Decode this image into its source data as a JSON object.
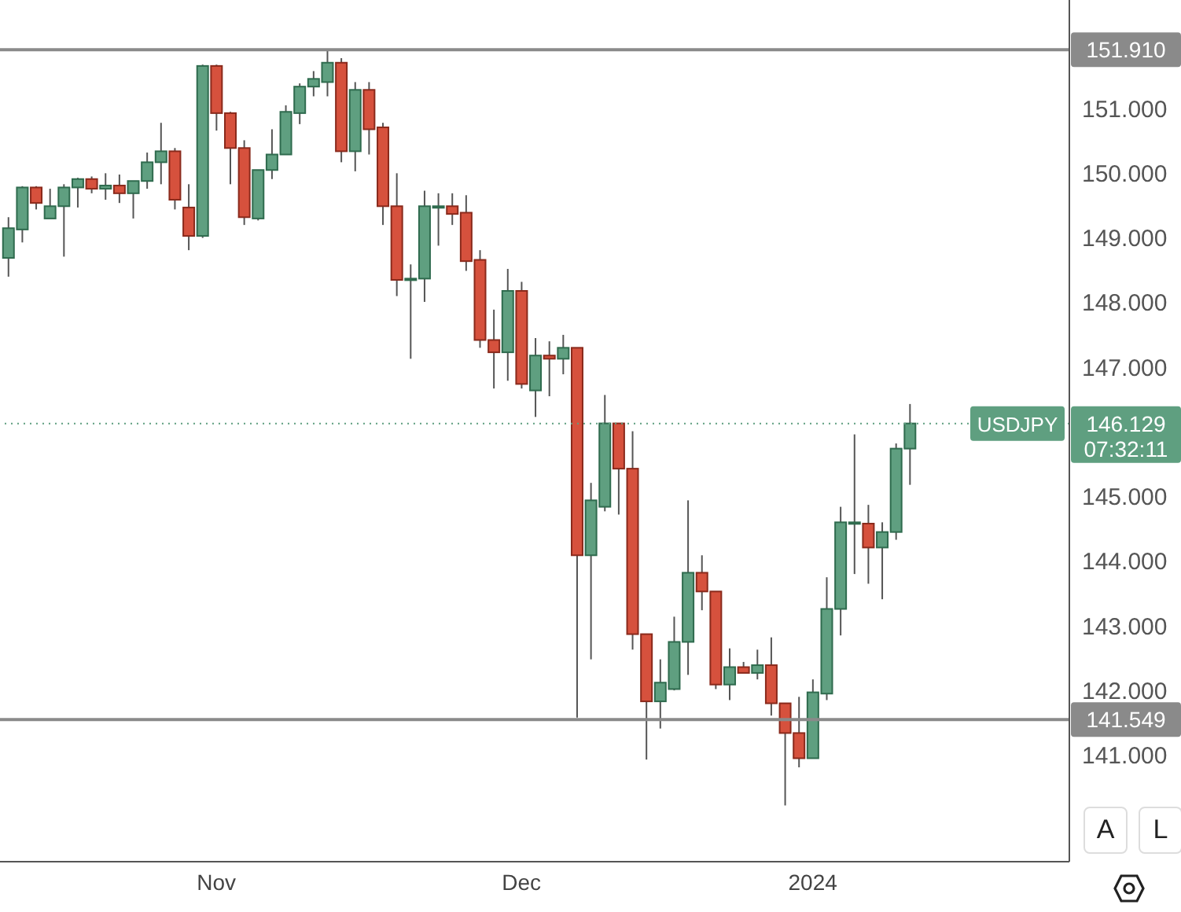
{
  "chart_data": {
    "type": "candlestick",
    "categories": [
      null,
      null,
      null,
      null,
      null,
      null,
      null,
      null,
      null,
      null,
      null,
      null,
      null,
      null,
      null,
      "Nov",
      null,
      null,
      null,
      null,
      null,
      null,
      null,
      null,
      null,
      null,
      null,
      null,
      null,
      null,
      null,
      null,
      null,
      null,
      null,
      null,
      null,
      "Dec",
      null,
      null,
      null,
      null,
      null,
      null,
      null,
      null,
      null,
      null,
      null,
      null,
      null,
      null,
      null,
      null,
      null,
      null,
      null,
      null,
      "2024",
      null,
      null,
      null,
      null,
      null,
      null,
      null,
      null,
      null,
      null,
      null,
      null,
      null,
      null,
      null,
      null,
      null,
      null
    ],
    "ohlc": [
      [
        148.69,
        149.32,
        148.4,
        149.15
      ],
      [
        149.13,
        149.8,
        148.93,
        149.78
      ],
      [
        149.78,
        149.8,
        149.44,
        149.54
      ],
      [
        149.3,
        149.76,
        149.3,
        149.49
      ],
      [
        149.49,
        149.83,
        148.71,
        149.78
      ],
      [
        149.78,
        149.93,
        149.47,
        149.91
      ],
      [
        149.91,
        149.95,
        149.69,
        149.76
      ],
      [
        149.76,
        150.0,
        149.59,
        149.81
      ],
      [
        149.81,
        149.98,
        149.54,
        149.69
      ],
      [
        149.69,
        149.88,
        149.3,
        149.88
      ],
      [
        149.88,
        150.32,
        149.76,
        150.17
      ],
      [
        150.17,
        150.78,
        149.83,
        150.34
      ],
      [
        150.34,
        150.39,
        149.44,
        149.59
      ],
      [
        149.47,
        149.83,
        148.81,
        149.03
      ],
      [
        149.03,
        151.68,
        149.0,
        151.66
      ],
      [
        151.66,
        151.68,
        150.66,
        150.93
      ],
      [
        150.93,
        150.95,
        149.83,
        150.39
      ],
      [
        150.39,
        150.51,
        149.2,
        149.32
      ],
      [
        149.3,
        150.05,
        149.27,
        150.05
      ],
      [
        150.05,
        150.68,
        149.91,
        150.29
      ],
      [
        150.29,
        151.05,
        150.29,
        150.95
      ],
      [
        150.93,
        151.39,
        150.76,
        151.34
      ],
      [
        151.34,
        151.58,
        151.19,
        151.46
      ],
      [
        151.41,
        151.91,
        151.19,
        151.71
      ],
      [
        151.71,
        151.78,
        150.17,
        150.34
      ],
      [
        150.34,
        151.41,
        150.03,
        151.29
      ],
      [
        151.29,
        151.41,
        150.29,
        150.68
      ],
      [
        150.71,
        150.78,
        149.2,
        149.49
      ],
      [
        149.49,
        150.0,
        148.1,
        148.35
      ],
      [
        148.37,
        148.59,
        147.13,
        148.37
      ],
      [
        148.37,
        149.73,
        148.01,
        149.49
      ],
      [
        149.49,
        149.69,
        148.88,
        149.49
      ],
      [
        149.49,
        149.69,
        149.2,
        149.37
      ],
      [
        149.39,
        149.66,
        148.49,
        148.64
      ],
      [
        148.66,
        148.81,
        147.3,
        147.42
      ],
      [
        147.42,
        147.89,
        146.67,
        147.23
      ],
      [
        147.23,
        148.52,
        146.79,
        148.18
      ],
      [
        148.18,
        148.32,
        146.67,
        146.74
      ],
      [
        146.64,
        147.45,
        146.23,
        147.18
      ],
      [
        147.18,
        147.4,
        146.55,
        147.13
      ],
      [
        147.13,
        147.5,
        146.89,
        147.3
      ],
      [
        147.3,
        147.3,
        141.58,
        144.09
      ],
      [
        144.09,
        145.21,
        142.48,
        144.94
      ],
      [
        144.84,
        146.57,
        144.77,
        146.13
      ],
      [
        146.13,
        146.13,
        144.72,
        145.43
      ],
      [
        145.43,
        146.01,
        142.63,
        142.87
      ],
      [
        142.87,
        142.87,
        140.93,
        141.83
      ],
      [
        141.83,
        142.48,
        141.41,
        142.12
      ],
      [
        142.02,
        143.14,
        142.0,
        142.75
      ],
      [
        142.75,
        144.94,
        142.24,
        143.82
      ],
      [
        143.82,
        144.09,
        143.24,
        143.53
      ],
      [
        143.53,
        143.53,
        142.02,
        142.09
      ],
      [
        142.09,
        142.65,
        141.85,
        142.36
      ],
      [
        142.36,
        142.44,
        142.27,
        142.27
      ],
      [
        142.27,
        142.63,
        142.17,
        142.39
      ],
      [
        142.39,
        142.82,
        141.61,
        141.8
      ],
      [
        141.8,
        141.8,
        140.22,
        141.34
      ],
      [
        141.34,
        141.9,
        140.81,
        140.95
      ],
      [
        140.95,
        142.17,
        140.95,
        141.97
      ],
      [
        141.95,
        143.75,
        141.85,
        143.26
      ],
      [
        143.26,
        144.84,
        142.85,
        144.6
      ],
      [
        144.6,
        145.96,
        143.8,
        144.6
      ],
      [
        144.58,
        144.87,
        143.65,
        144.21
      ],
      [
        144.21,
        144.6,
        143.41,
        144.45
      ],
      [
        144.45,
        145.82,
        144.33,
        145.74
      ],
      [
        145.74,
        146.43,
        145.18,
        146.129
      ],
      null,
      null,
      null,
      null,
      null,
      null,
      null,
      null,
      null,
      null,
      null
    ],
    "ylim": [
      139.35,
      152.68
    ],
    "yticks": [
      {
        "value": 141,
        "label": "141.000"
      },
      {
        "value": 142,
        "label": "142.000"
      },
      {
        "value": 143,
        "label": "143.000"
      },
      {
        "value": 144,
        "label": "144.000"
      },
      {
        "value": 145,
        "label": "145.000"
      },
      {
        "value": 147,
        "label": "147.000"
      },
      {
        "value": 148,
        "label": "148.000"
      },
      {
        "value": 149,
        "label": "149.000"
      },
      {
        "value": 150,
        "label": "150.000"
      },
      {
        "value": 151,
        "label": "151.000"
      }
    ],
    "ref_lines": [
      {
        "axis": "y",
        "value": 151.91,
        "label": "151.910",
        "color": "#8a8a8a",
        "line_style": "solid"
      },
      {
        "axis": "y",
        "value": 141.549,
        "label": "141.549",
        "color": "#8a8a8a",
        "line_style": "solid"
      },
      {
        "axis": "y",
        "value": 146.129,
        "label": "146.129",
        "color": "#5f9f80",
        "line_style": "dotted"
      }
    ],
    "annotations": [
      {
        "text": "USDJPY",
        "y": 146.129
      },
      "07:32:11",
      "A",
      "L"
    ]
  }
}
